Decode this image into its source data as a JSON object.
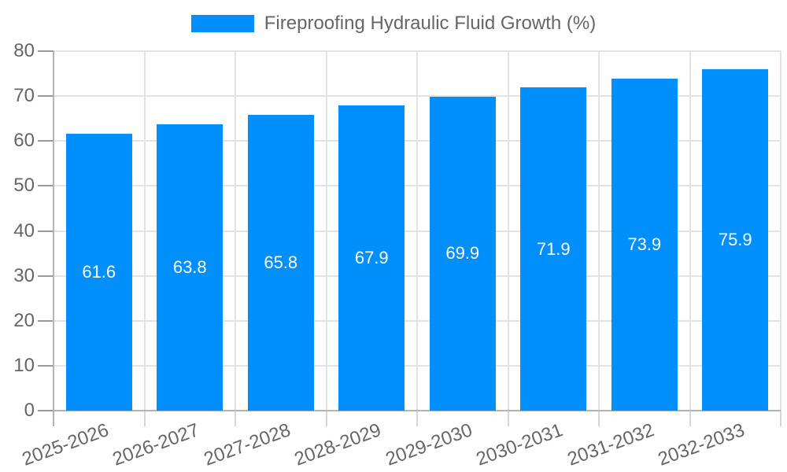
{
  "legend": {
    "label": "Fireproofing Hydraulic Fluid Growth (%)",
    "color": "#008FFB"
  },
  "chart_data": {
    "type": "bar",
    "title": "Fireproofing Hydraulic Fluid Growth (%)",
    "series_name": "Fireproofing Hydraulic Fluid Growth (%)",
    "categories": [
      "2025-2026",
      "2026-2027",
      "2027-2028",
      "2028-2029",
      "2029-2030",
      "2030-2031",
      "2031-2032",
      "2032-2033"
    ],
    "values": [
      61.6,
      63.8,
      65.8,
      67.9,
      69.9,
      71.9,
      73.9,
      75.9
    ],
    "value_labels": [
      "61.6",
      "63.8",
      "65.8",
      "67.9",
      "69.9",
      "71.9",
      "73.9",
      "75.9"
    ],
    "yticks": [
      0,
      10,
      20,
      30,
      40,
      50,
      60,
      70,
      80
    ],
    "ylim": [
      0,
      80
    ],
    "xlabel": "",
    "ylabel": "",
    "grid": true,
    "legend_position": "top",
    "bar_color": "#008FFB",
    "value_label_color": "#ffffff",
    "axis_text_color": "#666666",
    "grid_color": "#e3e3e3",
    "axis_line_color": "#b3b3b3"
  }
}
